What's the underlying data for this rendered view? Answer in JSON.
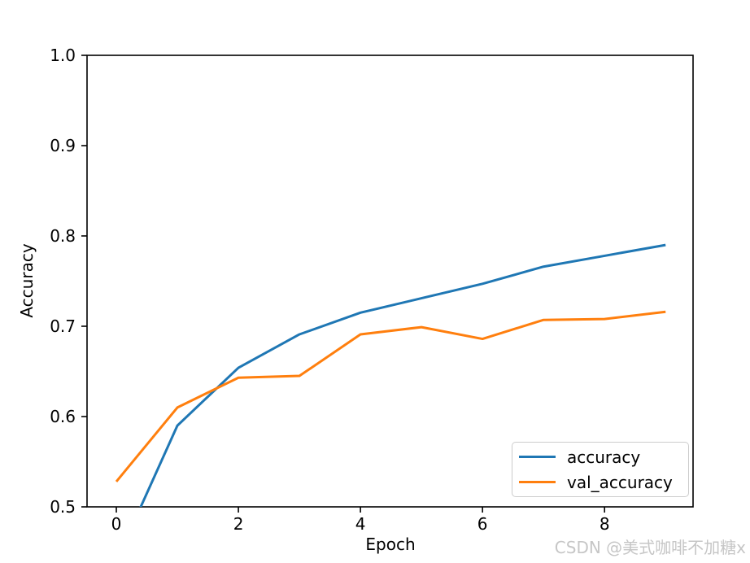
{
  "watermark": {
    "text": "CSDN @美式咖啡不加糖x",
    "color": "#c6c6c6"
  },
  "chart_data": {
    "type": "line",
    "title": "",
    "xlabel": "Epoch",
    "ylabel": "Accuracy",
    "x": [
      0,
      1,
      2,
      3,
      4,
      5,
      6,
      7,
      8,
      9
    ],
    "series": [
      {
        "name": "accuracy",
        "color": "#1f77b4",
        "values": [
          0.44,
          0.59,
          0.654,
          0.691,
          0.715,
          0.731,
          0.747,
          0.766,
          0.778,
          0.79
        ]
      },
      {
        "name": "val_accuracy",
        "color": "#ff7f0e",
        "values": [
          0.528,
          0.61,
          0.643,
          0.645,
          0.691,
          0.699,
          0.686,
          0.707,
          0.708,
          0.716
        ]
      }
    ],
    "xlim": [
      -0.48,
      9.45
    ],
    "ylim": [
      0.5,
      1.0
    ],
    "x_ticks": [
      0,
      2,
      4,
      6,
      8
    ],
    "y_ticks": [
      0.5,
      0.6,
      0.7,
      0.8,
      0.9,
      1.0
    ],
    "grid": false,
    "legend_position": "lower right",
    "axis_color": "#000000",
    "legend_edge_color": "#cccccc"
  }
}
